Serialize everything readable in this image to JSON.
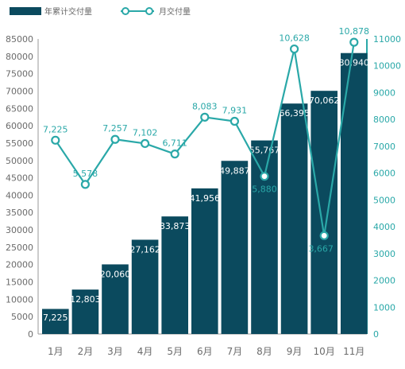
{
  "colors": {
    "bar": "#0b4a5e",
    "line": "#2aa8a8",
    "left_axis_text": "#6b6b6b",
    "right_axis_text": "#2aa8a8"
  },
  "legend": {
    "bar_label": "年累计交付量",
    "line_label": "月交付量"
  },
  "chart_data": {
    "type": "bar",
    "categories": [
      "1月",
      "2月",
      "3月",
      "4月",
      "5月",
      "6月",
      "7月",
      "8月",
      "9月",
      "10月",
      "11月"
    ],
    "series": [
      {
        "name": "年累计交付量",
        "type": "bar",
        "axis": "left",
        "values": [
          7225,
          12803,
          20060,
          27162,
          33873,
          41956,
          49887,
          55767,
          66395,
          70062,
          80940
        ],
        "labels": [
          "7,225",
          "12,803",
          "20,060",
          "27,162",
          "33,873",
          "41,956",
          "49,887",
          "55,767",
          "66,395",
          "70,062",
          "80,940"
        ]
      },
      {
        "name": "月交付量",
        "type": "line",
        "axis": "right",
        "values": [
          7225,
          5578,
          7257,
          7102,
          6711,
          8083,
          7931,
          5880,
          10628,
          3667,
          10878
        ],
        "labels": [
          "7,225",
          "5,578",
          "7,257",
          "7,102",
          "6,711",
          "8,083",
          "7,931",
          "5,880",
          "10,628",
          "3,667",
          "10,878"
        ]
      }
    ],
    "y_left": {
      "range": [
        0,
        85000
      ],
      "ticks": [
        "0",
        "5000",
        "10000",
        "15000",
        "20000",
        "25000",
        "30000",
        "35000",
        "40000",
        "45000",
        "50000",
        "55000",
        "60000",
        "65000",
        "70000",
        "75000",
        "80000",
        "85000"
      ]
    },
    "y_right": {
      "range": [
        0,
        11000
      ],
      "ticks": [
        "0",
        "1000",
        "2000",
        "3000",
        "4000",
        "5000",
        "6000",
        "7000",
        "8000",
        "9000",
        "10000",
        "11000"
      ]
    },
    "grid": false,
    "legend_position": "top-left"
  }
}
